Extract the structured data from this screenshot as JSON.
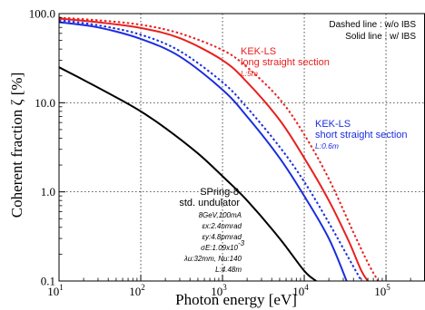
{
  "chart_data": {
    "type": "line",
    "xlabel": "Photon energy [eV]",
    "ylabel": "Coherent fraction ζ [%]",
    "xscale": "log",
    "yscale": "log",
    "xlim": [
      10,
      300000
    ],
    "ylim": [
      0.1,
      100
    ],
    "x_ticks": [
      {
        "value": 10,
        "base": "10",
        "exp": "1"
      },
      {
        "value": 100,
        "base": "10",
        "exp": "2"
      },
      {
        "value": 1000,
        "base": "10",
        "exp": "3"
      },
      {
        "value": 10000,
        "base": "10",
        "exp": "4"
      },
      {
        "value": 100000,
        "base": "10",
        "exp": "5"
      }
    ],
    "y_ticks": [
      {
        "value": 0.1,
        "label": "0.1"
      },
      {
        "value": 1,
        "label": "1.0"
      },
      {
        "value": 10,
        "label": "10.0"
      },
      {
        "value": 100,
        "label": "100.0"
      }
    ],
    "grid": true,
    "legend": {
      "dashed": "Dashed line : w/o IBS",
      "solid": "Solid line : w/ IBS"
    },
    "annotations": {
      "kek_long": {
        "name": "KEK-LS",
        "desc": "long straight section",
        "param": "L:5m",
        "color": "#e8201d"
      },
      "kek_short": {
        "name": "KEK-LS",
        "desc": "short straight section",
        "param": "L:0.6m",
        "color": "#1a2de0"
      },
      "spring8": {
        "name": "SPring-8",
        "desc": "std. undulator",
        "params": [
          "8GeV,100mA",
          "εx:2.4nmrad",
          "εy:4.8pmrad",
          "σE:1.09x10",
          "λu:32mm, Nu:140",
          "L:4.48m"
        ],
        "sigma_exp": "-3"
      }
    },
    "series": [
      {
        "color": "#e8201d",
        "style": "dashed",
        "x": [
          10,
          30,
          100,
          300,
          1000,
          2000,
          5000,
          10000,
          20000,
          40000,
          60000,
          80000
        ],
        "y": [
          90,
          84,
          75,
          60,
          39,
          25,
          11,
          4.4,
          1.4,
          0.35,
          0.16,
          0.1
        ]
      },
      {
        "color": "#e8201d",
        "style": "solid",
        "x": [
          10,
          30,
          100,
          300,
          1000,
          2000,
          5000,
          10000,
          20000,
          35000,
          50000,
          60000
        ],
        "y": [
          88,
          80,
          69,
          53,
          30,
          17,
          6.4,
          2.4,
          0.8,
          0.28,
          0.13,
          0.1
        ]
      },
      {
        "color": "#1a2de0",
        "style": "dashed",
        "x": [
          10,
          30,
          100,
          300,
          1000,
          2000,
          5000,
          10000,
          20000,
          35000,
          50000
        ],
        "y": [
          84,
          74,
          58,
          38,
          17,
          8.8,
          3.2,
          1.3,
          0.45,
          0.18,
          0.1
        ]
      },
      {
        "color": "#1a2de0",
        "style": "solid",
        "x": [
          10,
          30,
          100,
          300,
          1000,
          2000,
          5000,
          10000,
          20000,
          33000
        ],
        "y": [
          80,
          70,
          52,
          33,
          14,
          7.0,
          2.4,
          0.9,
          0.3,
          0.1
        ]
      },
      {
        "color": "#000000",
        "style": "solid",
        "x": [
          10,
          20,
          50,
          100,
          200,
          500,
          1000,
          2000,
          5000,
          10000,
          14000
        ],
        "y": [
          25,
          18,
          11.5,
          8,
          5.2,
          2.7,
          1.5,
          0.8,
          0.3,
          0.13,
          0.1
        ]
      }
    ]
  }
}
